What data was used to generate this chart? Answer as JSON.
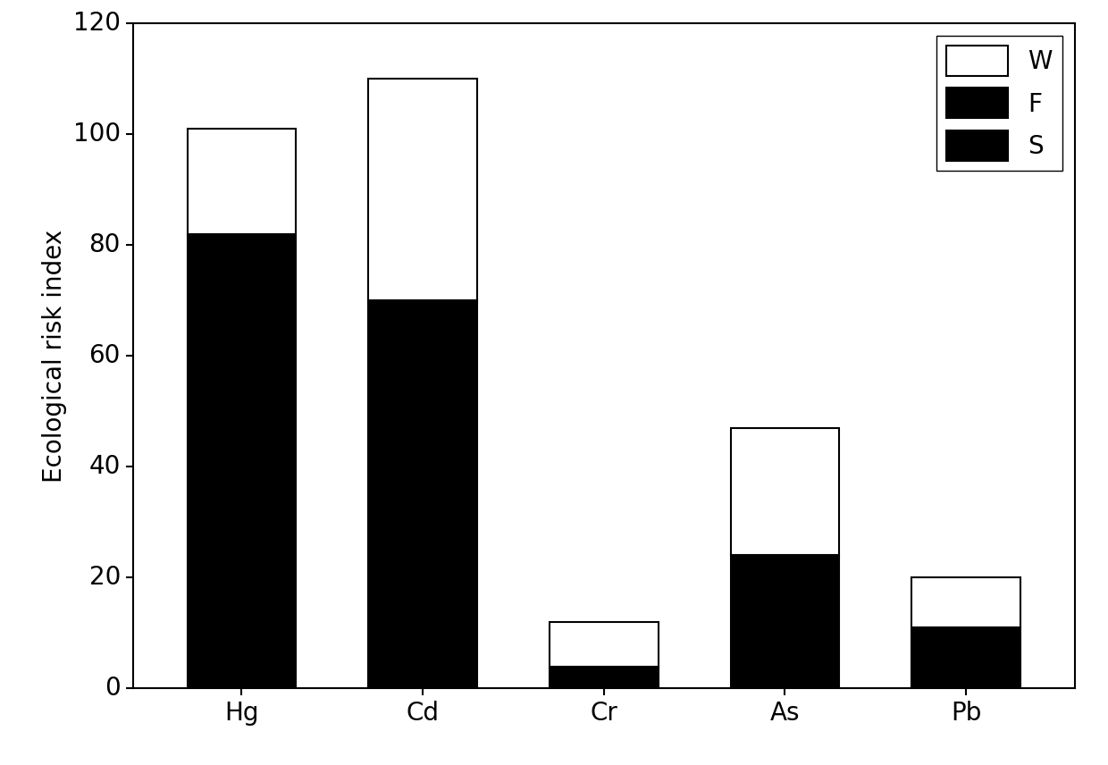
{
  "categories": [
    "Hg",
    "Cd",
    "Cr",
    "As",
    "Pb"
  ],
  "S_values": [
    0,
    0,
    0,
    0,
    0
  ],
  "F_values": [
    82,
    70,
    4,
    24,
    11
  ],
  "W_values": [
    19,
    40,
    8,
    23,
    9
  ],
  "colors": {
    "S": "#000000",
    "F": "#000000",
    "W": "#ffffff"
  },
  "ylabel": "Ecological risk index",
  "ylim": [
    0,
    120
  ],
  "yticks": [
    0,
    20,
    40,
    60,
    80,
    100,
    120
  ],
  "legend_labels": [
    "W",
    "F",
    "S"
  ],
  "bar_width": 0.6,
  "title": "",
  "background_color": "#ffffff",
  "edge_color": "#000000",
  "fontsize": 20,
  "tick_fontsize": 20,
  "label_fontsize": 20
}
